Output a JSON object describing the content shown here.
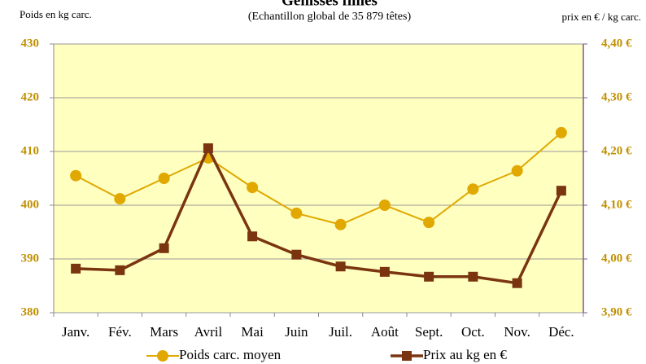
{
  "chart_data": {
    "type": "line",
    "title": "Génisses finies",
    "subtitle": "(Echantillon global de 35 879 têtes)",
    "ylabel": "Poids en kg carc.",
    "y2label": "prix en € / kg carc.",
    "categories": [
      "Janv.",
      "Fév.",
      "Mars",
      "Avril",
      "Mai",
      "Juin",
      "Juil.",
      "Août",
      "Sept.",
      "Oct.",
      "Nov.",
      "Déc."
    ],
    "series": [
      {
        "name": "Poids carc. moyen",
        "color": "#e0a800",
        "marker": "circle",
        "values": [
          405.5,
          401.2,
          405.0,
          408.8,
          403.3,
          398.5,
          396.4,
          400.0,
          396.8,
          403.0,
          406.4,
          413.5
        ]
      },
      {
        "name": "Prix au kg en €",
        "color": "#7a3510",
        "marker": "square",
        "axis": "y2",
        "values": [
          3.982,
          3.979,
          4.02,
          4.206,
          4.042,
          4.008,
          3.986,
          3.976,
          3.967,
          3.967,
          3.955,
          4.127
        ]
      }
    ],
    "ylim": [
      380,
      430
    ],
    "yticks": [
      380,
      390,
      400,
      410,
      420,
      430
    ],
    "y2lim": [
      3.9,
      4.4
    ],
    "y2ticks": [
      {
        "value": 3.9,
        "label": "3,90 €"
      },
      {
        "value": 4.0,
        "label": "4,00 €"
      },
      {
        "value": 4.1,
        "label": "4,10 €"
      },
      {
        "value": 4.2,
        "label": "4,20 €"
      },
      {
        "value": 4.3,
        "label": "4,30 €"
      },
      {
        "value": 4.4,
        "label": "4,40 €"
      }
    ],
    "grid": true,
    "legend": "bottom",
    "background": "#ffffc0"
  }
}
